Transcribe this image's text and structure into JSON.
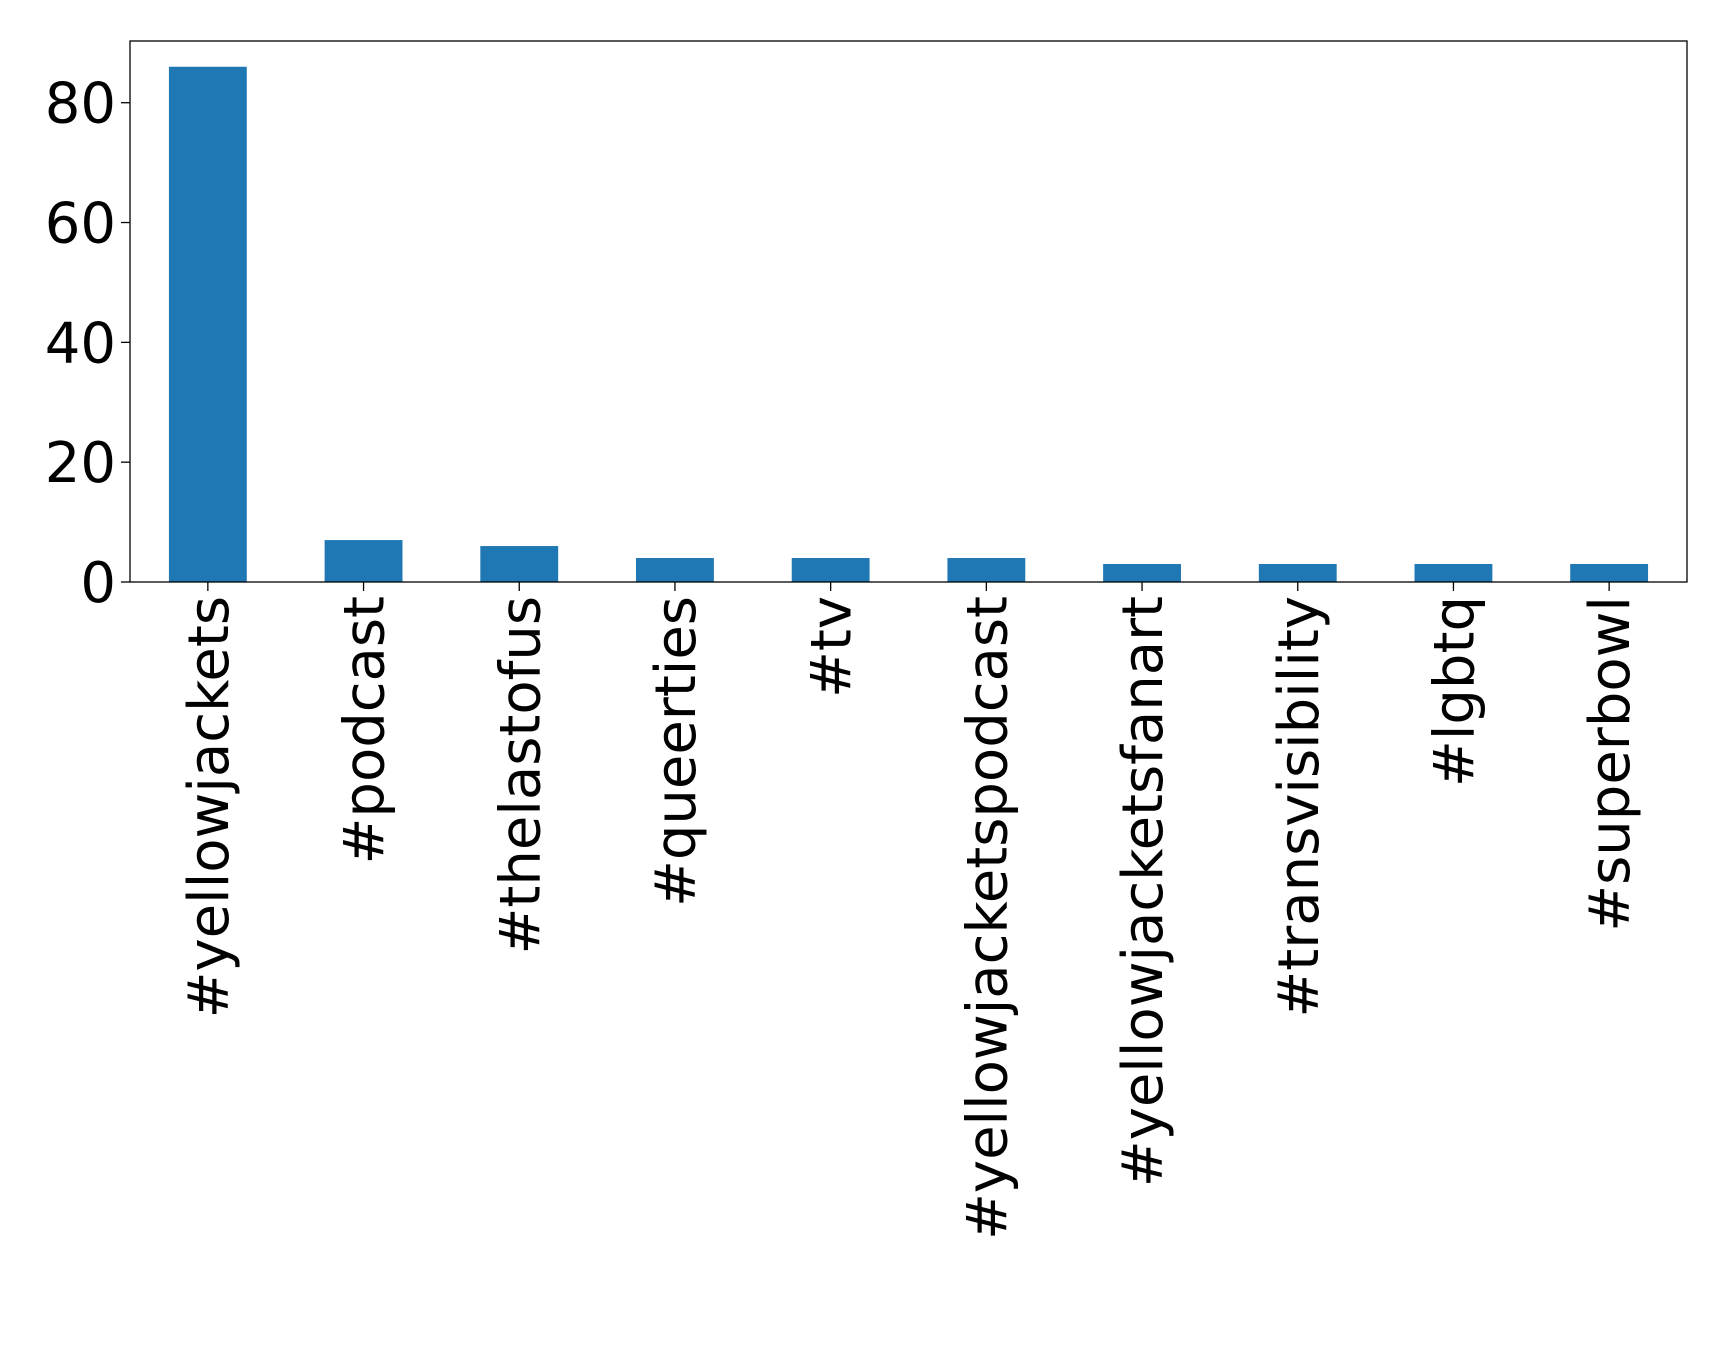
{
  "colors": {
    "bar": "#1f77b4",
    "axis": "#000000",
    "background": "#ffffff"
  },
  "chart_data": {
    "type": "bar",
    "title": "",
    "xlabel": "",
    "ylabel": "",
    "categories": [
      "#yellowjackets",
      "#podcast",
      "#thelastofus",
      "#queerties",
      "#tv",
      "#yellowjacketspodcast",
      "#yellowjacketsfanart",
      "#transvisibility",
      "#lgbtq",
      "#superbowl"
    ],
    "values": [
      86,
      7,
      6,
      4,
      4,
      4,
      3,
      3,
      3,
      3
    ],
    "ylim": [
      0,
      90.3
    ],
    "yticks": [
      0,
      20,
      40,
      60,
      80
    ],
    "grid": false,
    "legend": "none"
  }
}
